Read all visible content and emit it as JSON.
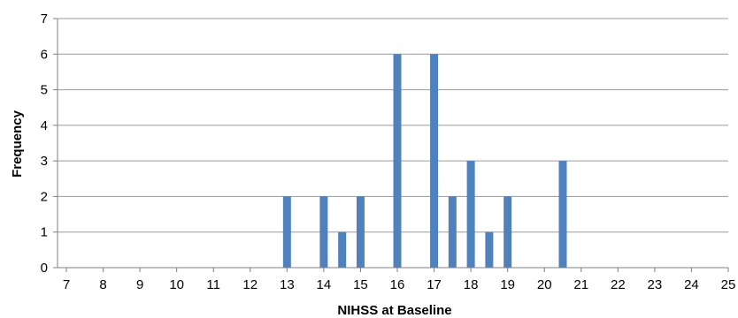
{
  "chart_data": {
    "type": "bar",
    "title": "",
    "xlabel": "NIHSS at Baseline",
    "ylabel": "Frequency",
    "xlim": [
      7,
      25
    ],
    "ylim": [
      0,
      7
    ],
    "x_ticks": [
      "7",
      "8",
      "9",
      "10",
      "11",
      "12",
      "13",
      "14",
      "15",
      "16",
      "17",
      "18",
      "19",
      "20",
      "21",
      "22",
      "23",
      "24",
      "25"
    ],
    "y_ticks": [
      "0",
      "1",
      "2",
      "3",
      "4",
      "5",
      "6",
      "7"
    ],
    "grid": "horizontal",
    "legend": "none",
    "bar_color": "#4f81bd",
    "series": [
      {
        "values": [
          {
            "x": 13,
            "y": 2
          },
          {
            "x": 14,
            "y": 2
          },
          {
            "x": 14.5,
            "y": 1
          },
          {
            "x": 15,
            "y": 2
          },
          {
            "x": 16,
            "y": 6
          },
          {
            "x": 17,
            "y": 6
          },
          {
            "x": 17.5,
            "y": 2
          },
          {
            "x": 18,
            "y": 3
          },
          {
            "x": 18.5,
            "y": 1
          },
          {
            "x": 19,
            "y": 2
          },
          {
            "x": 20.5,
            "y": 3
          }
        ]
      }
    ]
  }
}
